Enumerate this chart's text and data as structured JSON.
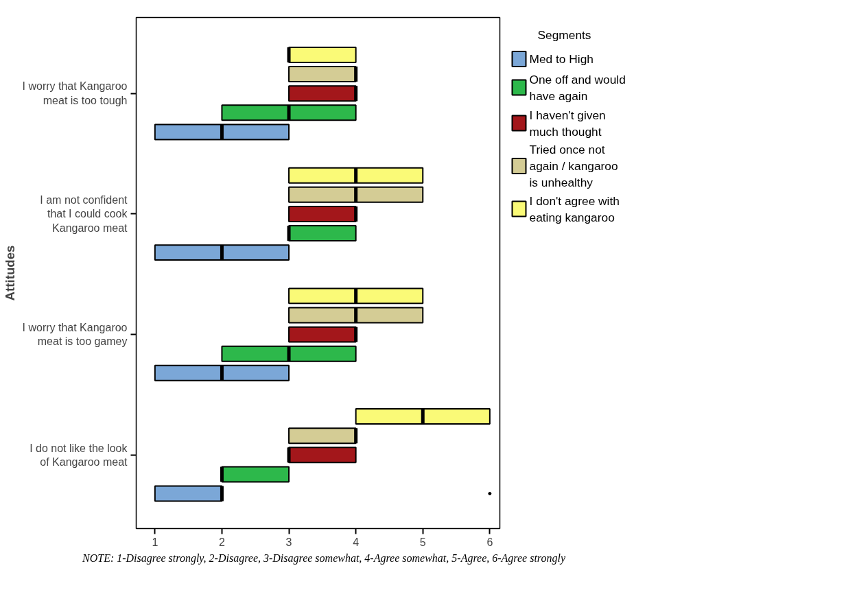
{
  "chart_data": {
    "type": "box",
    "orientation": "horizontal",
    "ylabel": "Attitudes",
    "legend_title": "Segments",
    "legend": "right",
    "grid": false,
    "categories": [
      "I worry that Kangaroo meat is too tough",
      "I am not confident that I could cook Kangaroo meat",
      "I worry that Kangaroo meat is too gamey",
      "I do not like the look of Kangaroo meat"
    ],
    "xlim": [
      0.72,
      6.15
    ],
    "xticks": [
      1,
      2,
      3,
      4,
      5,
      6
    ],
    "series": [
      {
        "name": "Med to High",
        "color": "#7ba7d7",
        "boxes": [
          {
            "low": 1,
            "q1": 1,
            "median": 2,
            "q3": 3,
            "high": 3
          },
          {
            "low": 1,
            "q1": 1,
            "median": 2,
            "q3": 3,
            "high": 3
          },
          {
            "low": 1,
            "q1": 1,
            "median": 2,
            "q3": 3,
            "high": 3
          },
          {
            "low": 1,
            "q1": 1,
            "median": 2,
            "q3": 2,
            "high": 2,
            "outliers": [
              6
            ]
          }
        ]
      },
      {
        "name": "One off and would have again",
        "color": "#2db84b",
        "boxes": [
          {
            "low": 2,
            "q1": 2,
            "median": 3,
            "q3": 4,
            "high": 4
          },
          {
            "low": 3,
            "q1": 3,
            "median": 3,
            "q3": 4,
            "high": 4
          },
          {
            "low": 2,
            "q1": 2,
            "median": 3,
            "q3": 4,
            "high": 4
          },
          {
            "low": 2,
            "q1": 2,
            "median": 2,
            "q3": 3,
            "high": 3
          }
        ]
      },
      {
        "name": "I haven't given much thought",
        "color": "#a3171b",
        "boxes": [
          {
            "low": 3,
            "q1": 3,
            "median": 4,
            "q3": 4,
            "high": 4
          },
          {
            "low": 3,
            "q1": 3,
            "median": 4,
            "q3": 4,
            "high": 4
          },
          {
            "low": 3,
            "q1": 3,
            "median": 4,
            "q3": 4,
            "high": 4
          },
          {
            "low": 3,
            "q1": 3,
            "median": 3,
            "q3": 4,
            "high": 4
          }
        ]
      },
      {
        "name": "Tried once not again / kangaroo is unhealthy",
        "color": "#d4cc95",
        "boxes": [
          {
            "low": 3,
            "q1": 3,
            "median": 4,
            "q3": 4,
            "high": 4
          },
          {
            "low": 3,
            "q1": 3,
            "median": 4,
            "q3": 5,
            "high": 5
          },
          {
            "low": 3,
            "q1": 3,
            "median": 4,
            "q3": 5,
            "high": 5
          },
          {
            "low": 3,
            "q1": 3,
            "median": 4,
            "q3": 4,
            "high": 4
          }
        ]
      },
      {
        "name": "I don't agree with eating kangaroo",
        "color": "#fafa77",
        "boxes": [
          {
            "low": 3,
            "q1": 3,
            "median": 3,
            "q3": 4,
            "high": 4
          },
          {
            "low": 3,
            "q1": 3,
            "median": 4,
            "q3": 5,
            "high": 5
          },
          {
            "low": 3,
            "q1": 3,
            "median": 4,
            "q3": 5,
            "high": 5
          },
          {
            "low": 4,
            "q1": 4,
            "median": 5,
            "q3": 6,
            "high": 6
          }
        ]
      }
    ],
    "annotations": [
      "NOTE: 1-Disagree strongly, 2-Disagree, 3-Disagree somewhat, 4-Agree somewhat, 5-Agree, 6-Agree strongly"
    ]
  }
}
